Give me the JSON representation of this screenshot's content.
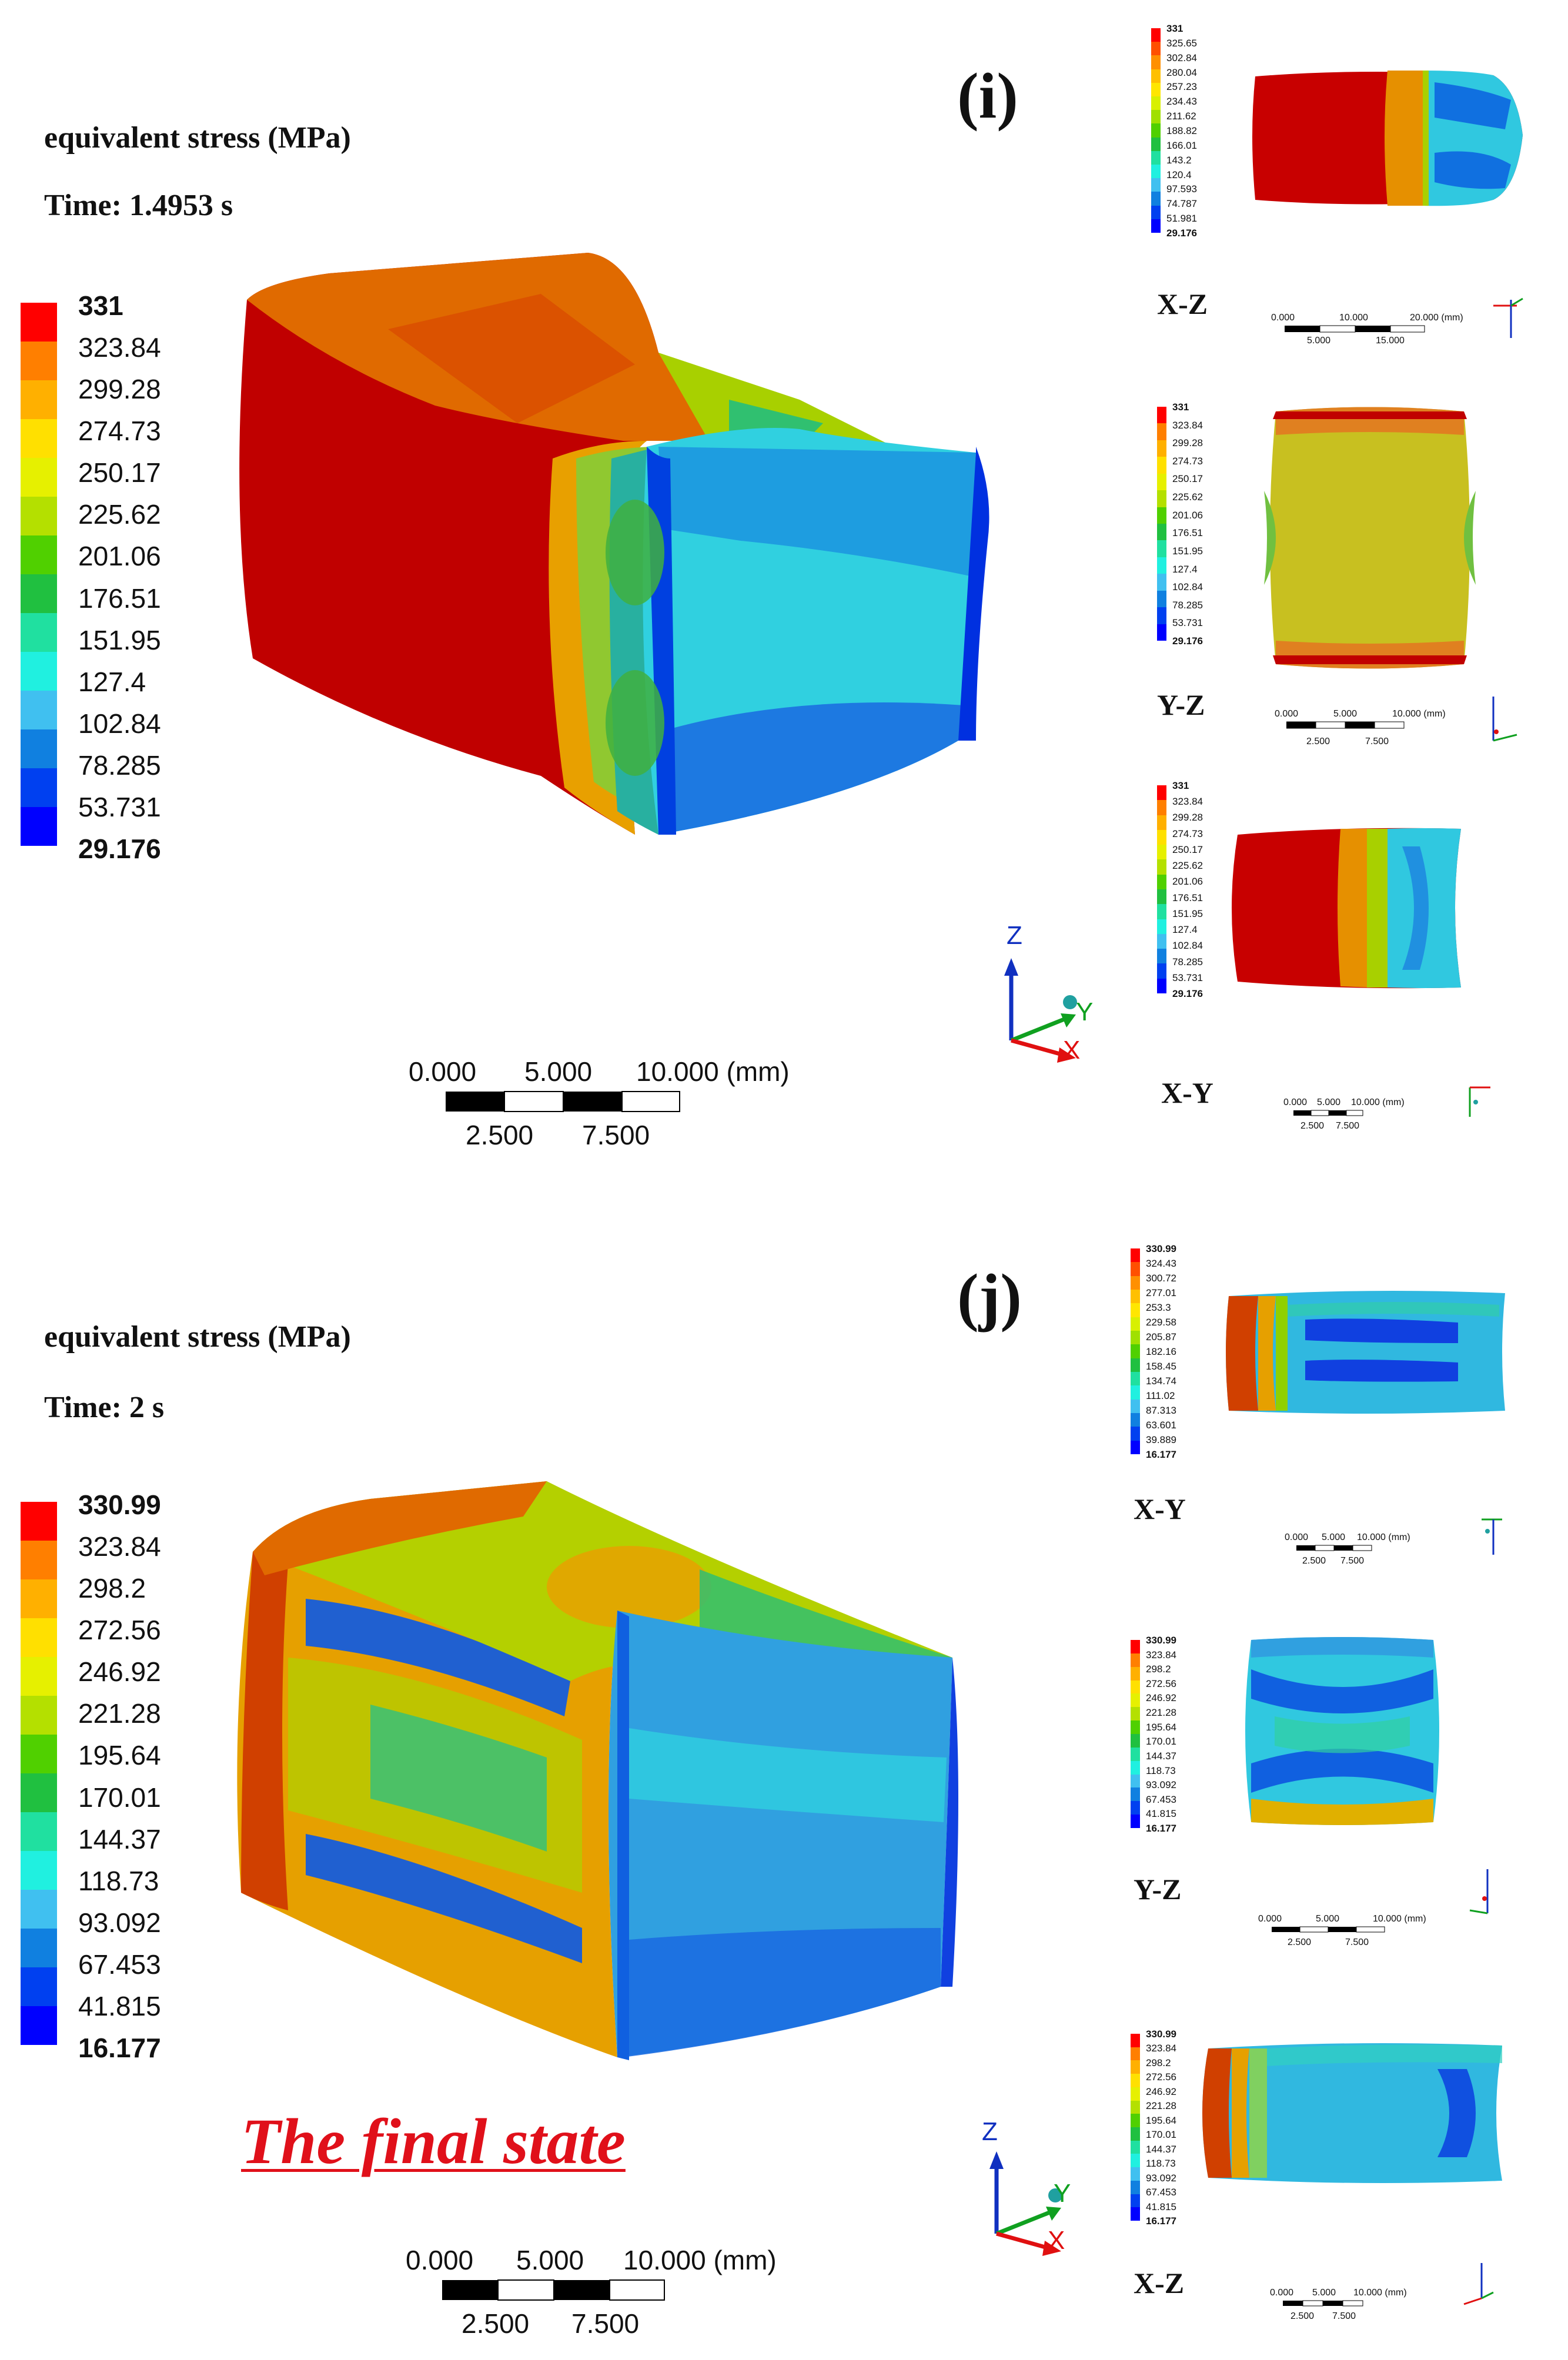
{
  "panel_i": {
    "letter": "(i)",
    "title": "equivalent stress (MPa)",
    "time": "Time: 1.4953 s",
    "legend": [
      "331",
      "323.84",
      "299.28",
      "274.73",
      "250.17",
      "225.62",
      "201.06",
      "176.51",
      "151.95",
      "127.4",
      "102.84",
      "78.285",
      "53.731",
      "29.176"
    ],
    "scale": {
      "top": [
        "0.000",
        "5.000",
        "10.000 (mm)"
      ],
      "bottom": [
        "2.500",
        "7.500"
      ]
    },
    "axes": {
      "z": "Z",
      "y": "Y",
      "x": "X"
    },
    "views": [
      {
        "label": "X-Z",
        "legend": [
          "331",
          "325.65",
          "302.84",
          "280.04",
          "257.23",
          "234.43",
          "211.62",
          "188.82",
          "166.01",
          "143.2",
          "120.4",
          "97.593",
          "74.787",
          "51.981",
          "29.176"
        ],
        "scale": {
          "top": [
            "0.000",
            "10.000",
            "20.000 (mm)"
          ],
          "bottom": [
            "5.000",
            "15.000"
          ]
        }
      },
      {
        "label": "Y-Z",
        "legend": [
          "331",
          "323.84",
          "299.28",
          "274.73",
          "250.17",
          "225.62",
          "201.06",
          "176.51",
          "151.95",
          "127.4",
          "102.84",
          "78.285",
          "53.731",
          "29.176"
        ],
        "scale": {
          "top": [
            "0.000",
            "5.000",
            "10.000 (mm)"
          ],
          "bottom": [
            "2.500",
            "7.500"
          ]
        }
      },
      {
        "label": "X-Y",
        "legend": [
          "331",
          "323.84",
          "299.28",
          "274.73",
          "250.17",
          "225.62",
          "201.06",
          "176.51",
          "151.95",
          "127.4",
          "102.84",
          "78.285",
          "53.731",
          "29.176"
        ],
        "scale": {
          "top": [
            "0.000",
            "5.000",
            "10.000 (mm)"
          ],
          "bottom": [
            "2.500",
            "7.500"
          ]
        }
      }
    ]
  },
  "panel_j": {
    "letter": "(j)",
    "title": "equivalent stress (MPa)",
    "time": "Time: 2 s",
    "legend": [
      "330.99",
      "323.84",
      "298.2",
      "272.56",
      "246.92",
      "221.28",
      "195.64",
      "170.01",
      "144.37",
      "118.73",
      "93.092",
      "67.453",
      "41.815",
      "16.177"
    ],
    "scale": {
      "top": [
        "0.000",
        "5.000",
        "10.000 (mm)"
      ],
      "bottom": [
        "2.500",
        "7.500"
      ]
    },
    "axes": {
      "z": "Z",
      "y": "Y",
      "x": "X"
    },
    "final_state": "The final state",
    "views": [
      {
        "label": "X-Y",
        "legend": [
          "330.99",
          "324.43",
          "300.72",
          "277.01",
          "253.3",
          "229.58",
          "205.87",
          "182.16",
          "158.45",
          "134.74",
          "111.02",
          "87.313",
          "63.601",
          "39.889",
          "16.177"
        ],
        "scale": {
          "top": [
            "0.000",
            "5.000",
            "10.000 (mm)"
          ],
          "bottom": [
            "2.500",
            "7.500"
          ]
        }
      },
      {
        "label": "Y-Z",
        "legend": [
          "330.99",
          "323.84",
          "298.2",
          "272.56",
          "246.92",
          "221.28",
          "195.64",
          "170.01",
          "144.37",
          "118.73",
          "93.092",
          "67.453",
          "41.815",
          "16.177"
        ],
        "scale": {
          "top": [
            "0.000",
            "5.000",
            "10.000 (mm)"
          ],
          "bottom": [
            "2.500",
            "7.500"
          ]
        }
      },
      {
        "label": "X-Z",
        "legend": [
          "330.99",
          "323.84",
          "298.2",
          "272.56",
          "246.92",
          "221.28",
          "195.64",
          "170.01",
          "144.37",
          "118.73",
          "93.092",
          "67.453",
          "41.815",
          "16.177"
        ],
        "scale": {
          "top": [
            "0.000",
            "5.000",
            "10.000 (mm)"
          ],
          "bottom": [
            "2.500",
            "7.500"
          ]
        }
      }
    ]
  },
  "colors": {
    "scale14": [
      "#ff0000",
      "#ff7f00",
      "#ffb000",
      "#ffe000",
      "#e6f000",
      "#b4e000",
      "#50d000",
      "#20c040",
      "#20e0a0",
      "#20f0e0",
      "#40c0f0",
      "#1080e0",
      "#0040f0",
      "#0000ff"
    ],
    "scale15": [
      "#ff0000",
      "#ff5000",
      "#ff9000",
      "#ffc000",
      "#ffe600",
      "#d8f000",
      "#a0e000",
      "#50d000",
      "#20c040",
      "#20e0a0",
      "#20f0e0",
      "#40c0f0",
      "#1080e0",
      "#0040f0",
      "#0000ff"
    ],
    "red_dark": "#c80000",
    "axis_blue": "#1030c0",
    "axis_green": "#10a020",
    "axis_red": "#e01010",
    "final_red": "#e0101a"
  }
}
